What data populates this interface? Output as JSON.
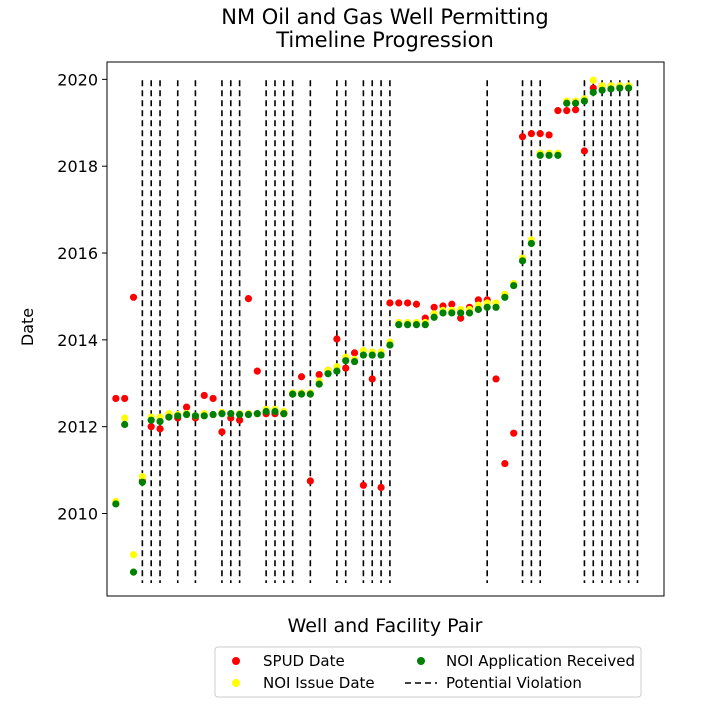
{
  "chart_data": {
    "type": "scatter",
    "title_lines": [
      "NM Oil and Gas Well Permitting",
      "Timeline Progression"
    ],
    "xlabel": "Well and Facility Pair",
    "ylabel": "Date",
    "xlim": [
      -1,
      62
    ],
    "ylim": [
      2008.1,
      2020.4
    ],
    "yticks": [
      "2010",
      "2012",
      "2014",
      "2016",
      "2018",
      "2020"
    ],
    "ytick_values": [
      2010,
      2012,
      2014,
      2016,
      2018,
      2020
    ],
    "grid": false,
    "legend_position": "below",
    "colors": {
      "spud": "#ff0000",
      "issue": "#ffff00",
      "app": "#008000",
      "violation": "#000000"
    },
    "series": [
      {
        "name": "SPUD Date",
        "key": "spud",
        "values": [
          2012.65,
          2012.65,
          2014.98,
          2010.75,
          2012.0,
          2011.95,
          2012.28,
          2012.2,
          2012.45,
          2012.2,
          2012.72,
          2012.65,
          2011.88,
          2012.2,
          2012.15,
          2014.95,
          2013.28,
          2012.3,
          2012.3,
          2012.3,
          2012.75,
          2013.15,
          2010.75,
          2013.2,
          2013.3,
          2014.02,
          2013.35,
          2013.7,
          2010.65,
          2013.1,
          2010.6,
          2014.85,
          2014.85,
          2014.85,
          2014.82,
          2014.5,
          2014.75,
          2014.78,
          2014.82,
          2014.5,
          2014.75,
          2014.92,
          2014.92,
          2013.1,
          2011.15,
          2011.85,
          2018.68,
          2018.75,
          2018.75,
          2018.72,
          2019.28,
          2019.28,
          2019.3,
          2018.35,
          2019.8,
          2019.85,
          2019.85,
          2019.85
        ]
      },
      {
        "name": "NOI Issue Date",
        "key": "issue",
        "values": [
          2010.28,
          2012.2,
          2009.05,
          2010.85,
          2012.22,
          2012.22,
          2012.3,
          2012.28,
          2012.3,
          2012.25,
          2012.3,
          2012.28,
          2012.33,
          2012.3,
          2012.3,
          2012.3,
          2012.3,
          2012.4,
          2012.4,
          2012.35,
          2012.78,
          2012.78,
          2012.78,
          2013.05,
          2013.3,
          2013.38,
          2013.6,
          2013.55,
          2013.75,
          2013.72,
          2013.72,
          2013.95,
          2014.4,
          2014.4,
          2014.4,
          2014.4,
          2014.6,
          2014.68,
          2014.68,
          2014.7,
          2014.7,
          2014.8,
          2014.85,
          2014.85,
          2015.05,
          2015.3,
          2015.88,
          2016.3,
          2018.3,
          2018.3,
          2018.3,
          2019.5,
          2019.5,
          2019.55,
          2019.98,
          2019.85,
          2019.85,
          2019.85,
          2019.85
        ]
      },
      {
        "name": "NOI Application Received",
        "key": "app",
        "values": [
          2010.22,
          2012.05,
          2008.65,
          2010.72,
          2012.15,
          2012.12,
          2012.22,
          2012.25,
          2012.28,
          2012.25,
          2012.25,
          2012.28,
          2012.3,
          2012.3,
          2012.28,
          2012.28,
          2012.3,
          2012.35,
          2012.35,
          2012.3,
          2012.75,
          2012.75,
          2012.75,
          2012.98,
          2013.22,
          2013.28,
          2013.52,
          2013.5,
          2013.65,
          2013.65,
          2013.65,
          2013.88,
          2014.35,
          2014.35,
          2014.35,
          2014.35,
          2014.52,
          2014.62,
          2014.62,
          2014.62,
          2014.62,
          2014.7,
          2014.75,
          2014.75,
          2014.98,
          2015.25,
          2015.82,
          2016.22,
          2018.25,
          2018.25,
          2018.25,
          2019.45,
          2019.45,
          2019.5,
          2019.7,
          2019.75,
          2019.78,
          2019.8,
          2019.8
        ]
      },
      {
        "name": "Potential Violation",
        "key": "violation",
        "x": [
          3,
          4,
          5,
          7,
          9,
          12,
          13,
          14,
          17,
          18,
          19,
          20,
          22,
          25,
          26,
          28,
          29,
          30,
          31,
          42,
          46,
          47,
          48,
          53,
          54,
          55,
          56,
          57,
          58,
          59
        ]
      }
    ]
  }
}
